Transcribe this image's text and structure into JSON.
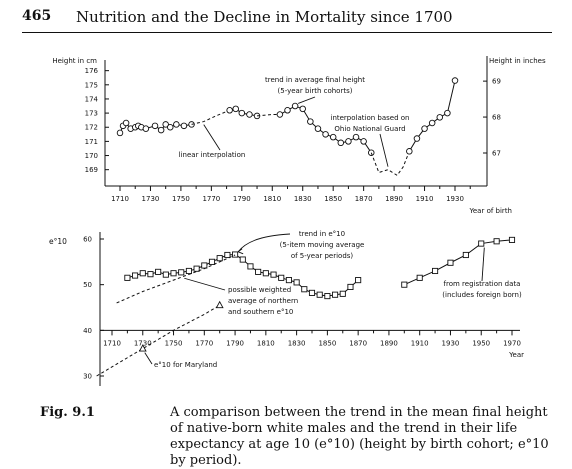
{
  "header": {
    "page_number": "465",
    "running_title": "Nutrition and the Decline in Mortality since 1700"
  },
  "caption": {
    "label": "Fig. 9.1",
    "text": "A comparison between the trend in the mean final height of native-born white males and the trend in their life expectancy at age 10 (e°10) (height by birth cohort; e°10 by period)."
  },
  "chart_data": [
    {
      "type": "line",
      "ylabel": "Height in cm",
      "ylabel_right": "Height in inches",
      "xlabel": "Year of birth",
      "x_ticks": [
        "1710",
        "1730",
        "1750",
        "1770",
        "1790",
        "1810",
        "1830",
        "1850",
        "1870",
        "1890",
        "1910",
        "1930"
      ],
      "y_ticks": [
        "176",
        "175",
        "174",
        "173",
        "172",
        "171",
        "170",
        "169"
      ],
      "y_ticks_right": [
        "69",
        "68",
        "67"
      ],
      "ylim": [
        168.2,
        176.4
      ],
      "annotations": [
        {
          "text": "trend in average final height",
          "text2": "(5-year birth cohorts)"
        },
        {
          "text": "interpolation based on",
          "text2": "Ohio National Guard"
        },
        {
          "text": "linear interpolation",
          "text2": ""
        }
      ],
      "series": [
        {
          "style": "markers",
          "x": [
            1710,
            1712,
            1714,
            1717,
            1720,
            1722,
            1724,
            1727,
            1733,
            1737,
            1740,
            1743,
            1747,
            1752,
            1757
          ],
          "y": [
            171.6,
            172.1,
            172.3,
            171.9,
            172.0,
            172.1,
            172.0,
            171.9,
            172.1,
            171.8,
            172.2,
            172.0,
            172.2,
            172.1,
            172.2
          ]
        },
        {
          "style": "dashed",
          "x": [
            1757,
            1765,
            1773,
            1782
          ],
          "y": [
            172.2,
            172.4,
            172.8,
            173.2
          ]
        },
        {
          "style": "markers",
          "x": [
            1782,
            1786,
            1790,
            1795,
            1800
          ],
          "y": [
            173.2,
            173.3,
            173.0,
            172.9,
            172.8
          ]
        },
        {
          "style": "dashed",
          "x": [
            1800,
            1810,
            1815
          ],
          "y": [
            172.8,
            172.9,
            172.9
          ]
        },
        {
          "style": "markers",
          "x": [
            1815,
            1820,
            1825,
            1830,
            1835,
            1840,
            1845,
            1850,
            1855,
            1860,
            1865,
            1870,
            1875
          ],
          "y": [
            172.9,
            173.2,
            173.5,
            173.3,
            172.4,
            171.9,
            171.5,
            171.3,
            170.9,
            171.0,
            171.3,
            171.0,
            170.2
          ]
        },
        {
          "style": "dashed",
          "x": [
            1875,
            1880,
            1886,
            1892,
            1896,
            1900
          ],
          "y": [
            170.2,
            168.8,
            169.0,
            168.6,
            169.2,
            170.3
          ]
        },
        {
          "style": "markers",
          "x": [
            1900,
            1905,
            1910,
            1915,
            1920,
            1925,
            1930
          ],
          "y": [
            170.3,
            171.2,
            171.9,
            172.3,
            172.7,
            173.0,
            175.3
          ]
        }
      ]
    },
    {
      "type": "line",
      "ylabel": "e°10",
      "xlabel": "Year",
      "x_ticks": [
        "1710",
        "1730",
        "1750",
        "1770",
        "1790",
        "1810",
        "1830",
        "1850",
        "1870",
        "1890",
        "1910",
        "1930",
        "1950",
        "1970"
      ],
      "y_ticks": [
        "60",
        "50",
        "40",
        "30"
      ],
      "ylim": [
        28,
        62
      ],
      "annotations": [
        {
          "text": "trend in e°10",
          "text2": "(5-item moving average",
          "text3": "of 5-year periods)"
        },
        {
          "text": "possible weighted",
          "text2": "average of northern",
          "text3": "and southern e°10"
        },
        {
          "text": "from registration data",
          "text2": "(includes foreign born)"
        },
        {
          "text": "e°10 for Maryland"
        }
      ],
      "series": [
        {
          "style": "markers",
          "x": [
            1720,
            1725,
            1730,
            1735,
            1740,
            1745,
            1750,
            1755,
            1760,
            1765,
            1770,
            1775,
            1780,
            1785,
            1790,
            1795,
            1800,
            1805,
            1810,
            1815,
            1820,
            1825,
            1830,
            1835,
            1840,
            1845,
            1850,
            1855,
            1860,
            1865,
            1870
          ],
          "y": [
            51.5,
            52.0,
            52.5,
            52.3,
            52.8,
            52.2,
            52.5,
            52.7,
            53.0,
            53.5,
            54.2,
            55.0,
            55.8,
            56.5,
            56.6,
            55.5,
            54.0,
            52.8,
            52.5,
            52.2,
            51.5,
            51.0,
            50.5,
            49.0,
            48.2,
            47.8,
            47.5,
            47.8,
            48.0,
            49.5,
            51.0
          ]
        },
        {
          "style": "dashed",
          "x": [
            1713,
            1730,
            1750,
            1770,
            1790
          ],
          "y": [
            46.0,
            48.5,
            51.0,
            53.5,
            56.5
          ]
        },
        {
          "style": "dashed",
          "x": [
            1700,
            1730,
            1750,
            1770,
            1780
          ],
          "y": [
            30.0,
            36.0,
            40.0,
            43.5,
            45.5
          ]
        },
        {
          "style": "markers_triangle",
          "x": [
            1730,
            1780
          ],
          "y": [
            36.0,
            45.5
          ]
        },
        {
          "style": "markers",
          "x": [
            1900,
            1910,
            1920,
            1930,
            1940,
            1950,
            1960,
            1970
          ],
          "y": [
            50.0,
            51.5,
            53.0,
            54.8,
            56.5,
            59.0,
            59.5,
            59.8
          ]
        }
      ]
    }
  ]
}
